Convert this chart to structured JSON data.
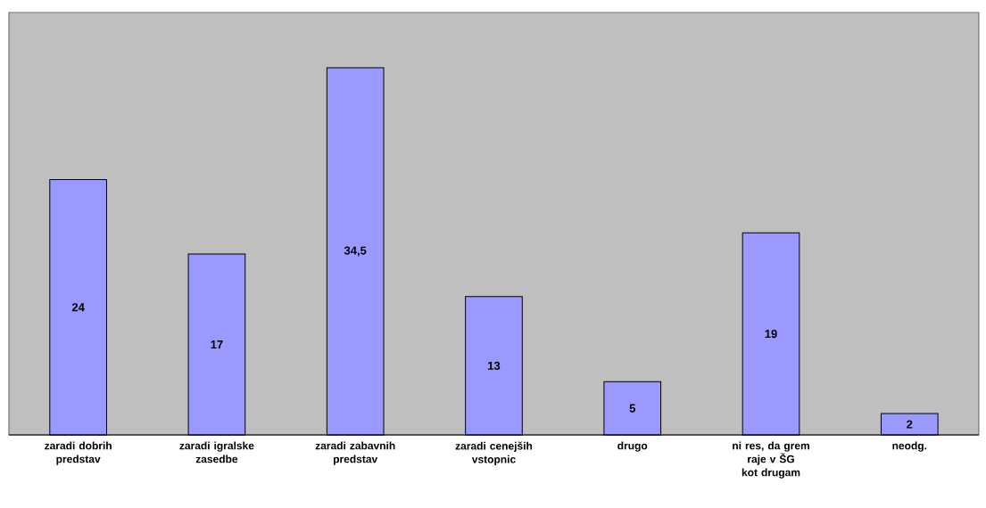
{
  "chart_data": {
    "type": "bar",
    "categories": [
      "zaradi dobrih predstav",
      "zaradi igralske zasedbe",
      "zaradi zabavnih predstav",
      "zaradi cenejših vstopnic",
      "drugo",
      "ni res, da grem raje v ŠG kot drugam",
      "neodg."
    ],
    "values": [
      24,
      17,
      34.5,
      13,
      5,
      19,
      2
    ],
    "value_labels": [
      "24",
      "17",
      "34,5",
      "13",
      "5",
      "19",
      "2"
    ],
    "color": "#9999ff",
    "ylim": [
      0,
      39.7
    ]
  }
}
